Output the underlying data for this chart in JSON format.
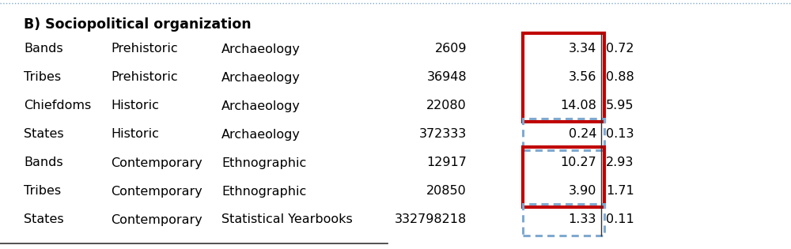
{
  "title": "B) Sociopolitical organization",
  "rows": [
    {
      "c1": "Bands",
      "c2": "Prehistoric",
      "c3": "Archaeology",
      "c4": "2609",
      "c5": "3.34",
      "c6": "0.72",
      "box": "red"
    },
    {
      "c1": "Tribes",
      "c2": "Prehistoric",
      "c3": "Archaeology",
      "c4": "36948",
      "c5": "3.56",
      "c6": "0.88",
      "box": "red"
    },
    {
      "c1": "Chiefdoms",
      "c2": "Historic",
      "c3": "Archaeology",
      "c4": "22080",
      "c5": "14.08",
      "c6": "5.95",
      "box": "red"
    },
    {
      "c1": "States",
      "c2": "Historic",
      "c3": "Archaeology",
      "c4": "372333",
      "c5": "0.24",
      "c6": "0.13",
      "box": "blue"
    },
    {
      "c1": "Bands",
      "c2": "Contemporary",
      "c3": "Ethnographic",
      "c4": "12917",
      "c5": "10.27",
      "c6": "2.93",
      "box": "red"
    },
    {
      "c1": "Tribes",
      "c2": "Contemporary",
      "c3": "Ethnographic",
      "c4": "20850",
      "c5": "3.90",
      "c6": "1.71",
      "box": "red"
    },
    {
      "c1": "States",
      "c2": "Contemporary",
      "c3": "Statistical Yearbooks",
      "c4": "332798218",
      "c5": "1.33",
      "c6": "0.11",
      "box": "blue"
    }
  ],
  "background_color": "#ffffff",
  "title_fontsize": 12.5,
  "row_fontsize": 11.5,
  "red_box_color": "#c00000",
  "blue_box_color": "#7fa9d0",
  "divider_color": "#333333",
  "outer_border_color": "#a0a0a0"
}
